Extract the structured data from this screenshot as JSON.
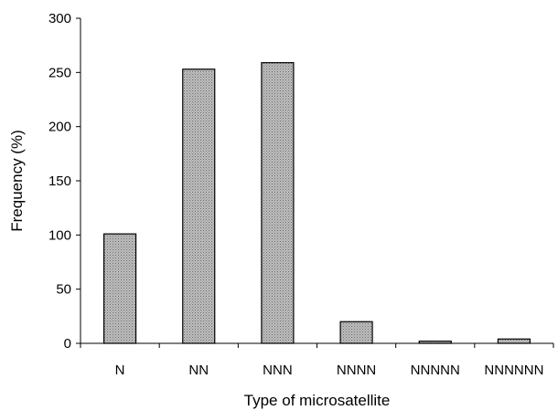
{
  "chart_data": {
    "type": "bar",
    "title": "",
    "xlabel": "Type of microsatellite",
    "ylabel": "Frequency (%)",
    "categories": [
      "N",
      "NN",
      "NNN",
      "NNNN",
      "NNNNN",
      "NNNNNN"
    ],
    "values": [
      101,
      253,
      259,
      20,
      2,
      4
    ],
    "ylim": [
      0,
      300
    ],
    "yticks": [
      0,
      50,
      100,
      150,
      200,
      250,
      300
    ],
    "grid": false,
    "legend": "none",
    "colors": {
      "bar_fill": "#b3b3b3",
      "bar_stroke": "#000000",
      "axis": "#000000"
    }
  }
}
